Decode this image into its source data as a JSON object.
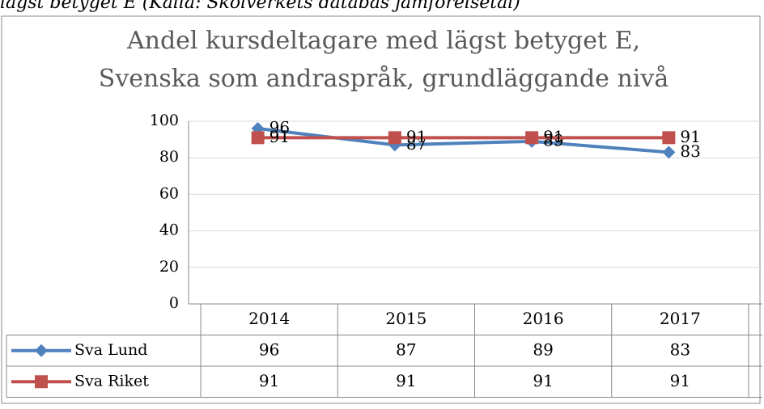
{
  "caption": "lägst betyget E (Källa: Skolverkets databas jämförelsetal)",
  "chart_data": {
    "type": "line",
    "title": [
      "Andel kursdeltagare med lägst betyget E,",
      "Svenska som andraspråk, grundläggande nivå"
    ],
    "categories": [
      "2014",
      "2015",
      "2016",
      "2017"
    ],
    "series": [
      {
        "name": "Sva Lund",
        "color": "#4f81bd",
        "marker": "diamond",
        "values": [
          96,
          87,
          89,
          83
        ]
      },
      {
        "name": "Sva Riket",
        "color": "#c0504d",
        "marker": "square",
        "values": [
          91,
          91,
          91,
          91
        ]
      }
    ],
    "ylim": [
      0,
      100
    ],
    "yticks": [
      0,
      20,
      40,
      60,
      80,
      100
    ],
    "grid": true,
    "data_table": true
  }
}
